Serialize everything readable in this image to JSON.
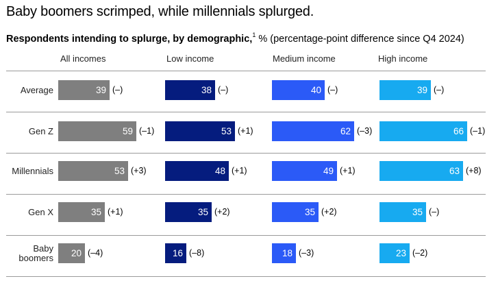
{
  "title": "Baby boomers scrimped, while millennials splurged.",
  "subtitle": {
    "bold": "Respondents intending to splurge, by demographic,",
    "footnote": "1",
    "rest": " % (percentage-point difference since Q4 2024)"
  },
  "colors": {
    "All incomes": "#7f7f7f",
    "Low income": "#051c7e",
    "Medium income": "#2b5af7",
    "High income": "#17aaf0"
  },
  "chart_data": {
    "type": "bar",
    "title": "Baby boomers scrimped, while millennials splurged.",
    "subtitle": "Respondents intending to splurge, by demographic, % (percentage-point difference since Q4 2024)",
    "orientation": "horizontal",
    "categories": [
      "Average",
      "Gen Z",
      "Millennials",
      "Gen X",
      "Baby boomers"
    ],
    "series": [
      {
        "name": "All incomes",
        "values": [
          39,
          59,
          53,
          35,
          20
        ],
        "changes": [
          "(–)",
          "(–1)",
          "(+3)",
          "(+1)",
          "(–4)"
        ]
      },
      {
        "name": "Low income",
        "values": [
          38,
          53,
          48,
          35,
          16
        ],
        "changes": [
          "(–)",
          "(+1)",
          "(+1)",
          "(+2)",
          "(–8)"
        ]
      },
      {
        "name": "Medium income",
        "values": [
          40,
          62,
          49,
          35,
          18
        ],
        "changes": [
          "(–)",
          "(–3)",
          "(+1)",
          "(+2)",
          "(–3)"
        ]
      },
      {
        "name": "High income",
        "values": [
          39,
          66,
          63,
          35,
          23
        ],
        "changes": [
          "(–)",
          "(–1)",
          "(+8)",
          "(–)",
          "(–2)"
        ]
      }
    ],
    "xlim": [
      0,
      66
    ],
    "grid": false,
    "legend": "column headers"
  }
}
